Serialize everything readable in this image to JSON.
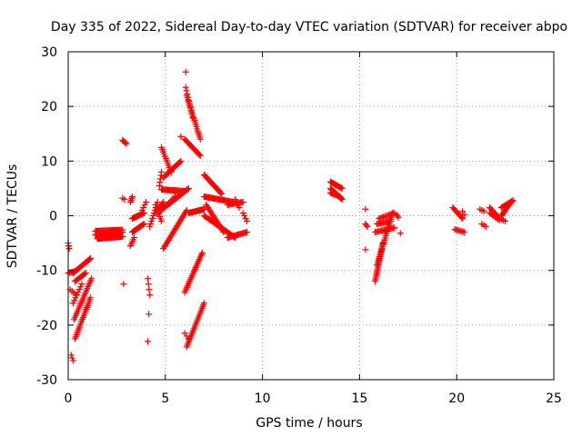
{
  "chart_data": {
    "type": "scatter",
    "title": "Day 335 of 2022, Sidereal Day-to-day VTEC variation (SDTVAR) for receiver abpo",
    "xlabel": "GPS time / hours",
    "ylabel": "SDTVAR / TECUs",
    "xlim": [
      0,
      25
    ],
    "ylim": [
      -30,
      30
    ],
    "xticks": [
      "0",
      "5",
      "10",
      "15",
      "20",
      "25"
    ],
    "yticks": [
      "-30",
      "-20",
      "-10",
      "0",
      "10",
      "20",
      "30"
    ],
    "grid": true,
    "marker": "+",
    "color": "#ff0000",
    "segments": [
      {
        "x0": 0.0,
        "y0": -5.0,
        "x1": 0.05,
        "y1": -6.0,
        "n": 3
      },
      {
        "x0": 0.0,
        "y0": -10.5,
        "x1": 0.3,
        "y1": -10.2,
        "n": 5
      },
      {
        "x0": 0.15,
        "y0": -25.5,
        "x1": 0.25,
        "y1": -26.5,
        "n": 3
      },
      {
        "x0": 0.1,
        "y0": -13.5,
        "x1": 0.4,
        "y1": -14.5,
        "n": 4
      },
      {
        "x0": 0.25,
        "y0": -10.5,
        "x1": 1.15,
        "y1": -7.8,
        "n": 18
      },
      {
        "x0": 0.35,
        "y0": -22.5,
        "x1": 1.15,
        "y1": -15.0,
        "n": 22
      },
      {
        "x0": 0.3,
        "y0": -19.0,
        "x1": 1.2,
        "y1": -11.5,
        "n": 22
      },
      {
        "x0": 0.25,
        "y0": -16.0,
        "x1": 0.7,
        "y1": -12.5,
        "n": 8
      },
      {
        "x0": 0.35,
        "y0": -12.0,
        "x1": 0.9,
        "y1": -10.5,
        "n": 10
      },
      {
        "x0": 1.4,
        "y0": -3.5,
        "x1": 2.8,
        "y1": -3.0,
        "n": 35
      },
      {
        "x0": 1.4,
        "y0": -2.8,
        "x1": 2.8,
        "y1": -2.6,
        "n": 30
      },
      {
        "x0": 1.5,
        "y0": -4.2,
        "x1": 2.8,
        "y1": -3.8,
        "n": 30
      },
      {
        "x0": 2.8,
        "y0": 13.8,
        "x1": 3.0,
        "y1": 13.2,
        "n": 5
      },
      {
        "x0": 2.8,
        "y0": 3.2,
        "x1": 2.9,
        "y1": 3.0,
        "n": 2
      },
      {
        "x0": 2.85,
        "y0": -12.5,
        "x1": 2.85,
        "y1": -12.5,
        "n": 1
      },
      {
        "x0": 3.2,
        "y0": 2.5,
        "x1": 3.3,
        "y1": 3.5,
        "n": 4
      },
      {
        "x0": 3.3,
        "y0": -0.5,
        "x1": 3.9,
        "y1": 0.5,
        "n": 14
      },
      {
        "x0": 3.3,
        "y0": -3.0,
        "x1": 3.9,
        "y1": -1.5,
        "n": 14
      },
      {
        "x0": 3.2,
        "y0": -5.5,
        "x1": 3.4,
        "y1": -4.0,
        "n": 5
      },
      {
        "x0": 3.8,
        "y0": 1.0,
        "x1": 4.0,
        "y1": 2.5,
        "n": 4
      },
      {
        "x0": 4.1,
        "y0": -11.5,
        "x1": 4.2,
        "y1": -14.5,
        "n": 4
      },
      {
        "x0": 4.15,
        "y0": -18.0,
        "x1": 4.2,
        "y1": -18.0,
        "n": 1
      },
      {
        "x0": 4.1,
        "y0": -23.0,
        "x1": 4.1,
        "y1": -23.0,
        "n": 1
      },
      {
        "x0": 4.2,
        "y0": -2.0,
        "x1": 4.6,
        "y1": 2.5,
        "n": 10
      },
      {
        "x0": 4.5,
        "y0": 0.5,
        "x1": 4.9,
        "y1": 2.5,
        "n": 8
      },
      {
        "x0": 4.5,
        "y0": 2.0,
        "x1": 4.8,
        "y1": -1.0,
        "n": 8
      },
      {
        "x0": 4.7,
        "y0": 5.5,
        "x1": 4.8,
        "y1": 8.0,
        "n": 5
      },
      {
        "x0": 4.8,
        "y0": 12.5,
        "x1": 5.3,
        "y1": 8.0,
        "n": 12
      },
      {
        "x0": 4.8,
        "y0": 4.8,
        "x1": 6.0,
        "y1": 4.5,
        "n": 25
      },
      {
        "x0": 4.9,
        "y0": 7.0,
        "x1": 5.8,
        "y1": 10.0,
        "n": 18
      },
      {
        "x0": 4.9,
        "y0": -6.0,
        "x1": 6.1,
        "y1": 1.0,
        "n": 28
      },
      {
        "x0": 4.6,
        "y0": 0.5,
        "x1": 6.2,
        "y1": 5.0,
        "n": 30
      },
      {
        "x0": 5.1,
        "y0": 2.0,
        "x1": 5.5,
        "y1": 3.5,
        "n": 6
      },
      {
        "x0": 5.8,
        "y0": 14.5,
        "x1": 5.8,
        "y1": 14.5,
        "n": 1
      },
      {
        "x0": 6.05,
        "y0": 26.3,
        "x1": 6.05,
        "y1": 26.3,
        "n": 1
      },
      {
        "x0": 6.05,
        "y0": 23.5,
        "x1": 6.4,
        "y1": 18.0,
        "n": 10
      },
      {
        "x0": 6.1,
        "y0": 22.0,
        "x1": 6.8,
        "y1": 14.0,
        "n": 22
      },
      {
        "x0": 6.0,
        "y0": 14.0,
        "x1": 6.8,
        "y1": 11.0,
        "n": 18
      },
      {
        "x0": 6.0,
        "y0": -14.0,
        "x1": 6.9,
        "y1": -6.8,
        "n": 25
      },
      {
        "x0": 6.1,
        "y0": -24.0,
        "x1": 7.0,
        "y1": -16.0,
        "n": 25
      },
      {
        "x0": 6.0,
        "y0": -21.5,
        "x1": 6.2,
        "y1": -22.5,
        "n": 3
      },
      {
        "x0": 6.2,
        "y0": 0.5,
        "x1": 7.0,
        "y1": 1.2,
        "n": 18
      },
      {
        "x0": 7.0,
        "y0": 7.5,
        "x1": 7.9,
        "y1": 4.0,
        "n": 18
      },
      {
        "x0": 7.0,
        "y0": 3.5,
        "x1": 8.5,
        "y1": 2.5,
        "n": 30
      },
      {
        "x0": 7.1,
        "y0": 2.0,
        "x1": 8.0,
        "y1": -3.0,
        "n": 20
      },
      {
        "x0": 7.0,
        "y0": 0.0,
        "x1": 8.6,
        "y1": -4.0,
        "n": 30
      },
      {
        "x0": 8.2,
        "y0": -4.0,
        "x1": 9.2,
        "y1": -3.0,
        "n": 18
      },
      {
        "x0": 8.2,
        "y0": 2.0,
        "x1": 9.0,
        "y1": 2.5,
        "n": 14
      },
      {
        "x0": 8.6,
        "y0": 3.0,
        "x1": 8.8,
        "y1": 1.5,
        "n": 4
      },
      {
        "x0": 9.0,
        "y0": 0.5,
        "x1": 9.2,
        "y1": -1.0,
        "n": 4
      },
      {
        "x0": 13.5,
        "y0": 6.2,
        "x1": 14.1,
        "y1": 5.0,
        "n": 14
      },
      {
        "x0": 13.5,
        "y0": 5.0,
        "x1": 14.1,
        "y1": 3.0,
        "n": 16
      },
      {
        "x0": 13.5,
        "y0": 4.2,
        "x1": 14.0,
        "y1": 3.5,
        "n": 10
      },
      {
        "x0": 15.3,
        "y0": 1.2,
        "x1": 15.3,
        "y1": 1.2,
        "n": 1
      },
      {
        "x0": 15.3,
        "y0": -1.5,
        "x1": 15.4,
        "y1": -2.0,
        "n": 3
      },
      {
        "x0": 15.3,
        "y0": -6.2,
        "x1": 15.3,
        "y1": -6.2,
        "n": 1
      },
      {
        "x0": 15.8,
        "y0": -12.0,
        "x1": 16.2,
        "y1": -5.0,
        "n": 24
      },
      {
        "x0": 15.9,
        "y0": -9.0,
        "x1": 16.7,
        "y1": 0.5,
        "n": 26
      },
      {
        "x0": 15.8,
        "y0": -3.0,
        "x1": 16.8,
        "y1": -2.2,
        "n": 16
      },
      {
        "x0": 15.9,
        "y0": -1.5,
        "x1": 16.6,
        "y1": -1.0,
        "n": 12
      },
      {
        "x0": 16.0,
        "y0": -0.5,
        "x1": 16.8,
        "y1": 0.5,
        "n": 12
      },
      {
        "x0": 16.9,
        "y0": 0.2,
        "x1": 17.0,
        "y1": -0.3,
        "n": 3
      },
      {
        "x0": 17.1,
        "y0": -3.2,
        "x1": 17.1,
        "y1": -3.2,
        "n": 1
      },
      {
        "x0": 19.8,
        "y0": 1.5,
        "x1": 20.3,
        "y1": -0.5,
        "n": 10
      },
      {
        "x0": 19.9,
        "y0": -2.5,
        "x1": 20.4,
        "y1": -3.0,
        "n": 8
      },
      {
        "x0": 20.3,
        "y0": 0.8,
        "x1": 20.4,
        "y1": 0.2,
        "n": 2
      },
      {
        "x0": 21.2,
        "y0": 1.2,
        "x1": 21.4,
        "y1": 0.8,
        "n": 3
      },
      {
        "x0": 21.3,
        "y0": -1.5,
        "x1": 21.5,
        "y1": -2.0,
        "n": 3
      },
      {
        "x0": 21.7,
        "y0": 1.5,
        "x1": 22.2,
        "y1": -0.5,
        "n": 10
      },
      {
        "x0": 21.7,
        "y0": 0.5,
        "x1": 22.2,
        "y1": -0.8,
        "n": 8
      },
      {
        "x0": 22.3,
        "y0": 0.0,
        "x1": 22.8,
        "y1": 2.5,
        "n": 12
      },
      {
        "x0": 22.3,
        "y0": 1.5,
        "x1": 22.9,
        "y1": 2.8,
        "n": 10
      },
      {
        "x0": 22.2,
        "y0": -0.5,
        "x1": 22.5,
        "y1": -1.0,
        "n": 4
      }
    ]
  }
}
